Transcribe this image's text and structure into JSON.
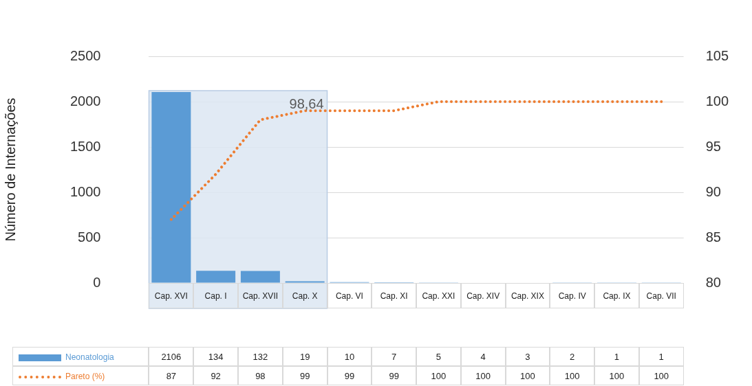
{
  "chart_data": {
    "type": "bar",
    "ylabel": "Número de Internações",
    "categories": [
      "Cap. XVI",
      "Cap. I",
      "Cap. XVII",
      "Cap. X",
      "Cap. VI",
      "Cap. XI",
      "Cap. XXI",
      "Cap. XIV",
      "Cap. XIX",
      "Cap. IV",
      "Cap. IX",
      "Cap. VII"
    ],
    "series": [
      {
        "name": "Neonatologia",
        "type": "bar",
        "color": "#5b9bd5",
        "values": [
          2106,
          134,
          132,
          19,
          10,
          7,
          5,
          4,
          3,
          2,
          1,
          1
        ]
      },
      {
        "name": "Pareto (%)",
        "type": "line",
        "axis": "y2",
        "color": "#ed7d31",
        "line_style": "dotted",
        "values": [
          87,
          92,
          98,
          99,
          99,
          99,
          100,
          100,
          100,
          100,
          100,
          100
        ]
      }
    ],
    "ylim": [
      0,
      2500
    ],
    "yticks": [
      0,
      500,
      1000,
      1500,
      2000,
      2500
    ],
    "y2lim": [
      80,
      105
    ],
    "y2ticks": [
      80,
      85,
      90,
      95,
      100,
      105
    ],
    "grid": "y",
    "legend": "bottom",
    "marker": "none",
    "data_labels": true,
    "bands": [
      {
        "axis": "x",
        "from": "Cap. XVI",
        "to": "Cap. X",
        "color": "#dce6f2"
      }
    ],
    "annotations": [
      "98,64"
    ]
  }
}
